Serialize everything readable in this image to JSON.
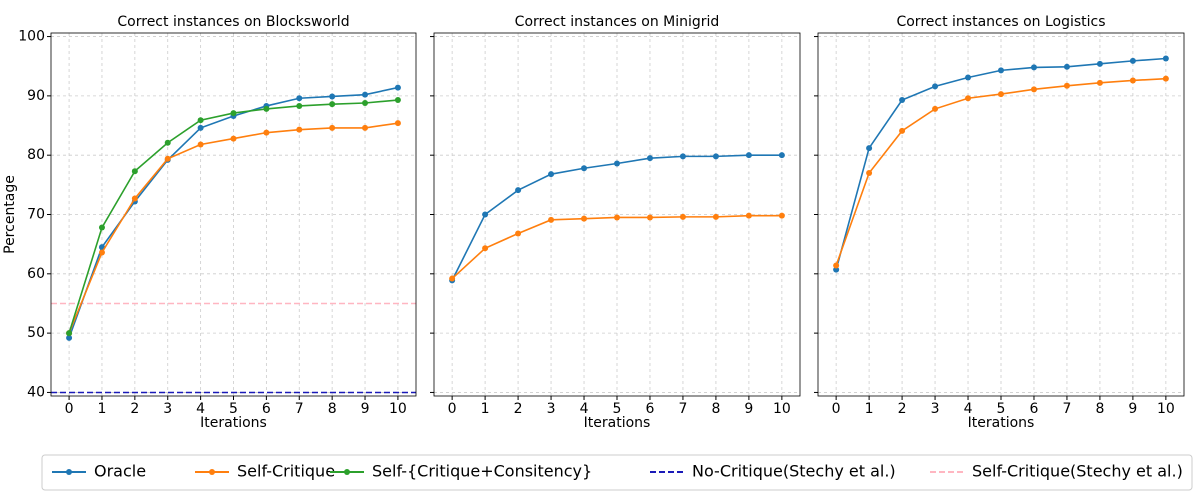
{
  "chart_data": [
    {
      "type": "line",
      "title": "Correct instances on Blocksworld",
      "xlabel": "Iterations",
      "ylabel": "Percentage",
      "x": [
        0,
        1,
        2,
        3,
        4,
        5,
        6,
        7,
        8,
        9,
        10
      ],
      "series": [
        {
          "name": "Oracle",
          "color": "#1f77b4",
          "values": [
            49.2,
            64.5,
            72.2,
            79.2,
            84.6,
            86.6,
            88.3,
            89.6,
            89.9,
            90.2,
            91.4
          ]
        },
        {
          "name": "Self-Critique",
          "color": "#ff7f0e",
          "values": [
            50,
            63.6,
            72.7,
            79.4,
            81.8,
            82.8,
            83.8,
            84.3,
            84.6,
            84.6,
            85.4
          ]
        },
        {
          "name": "Self-{Critique+Consitency}",
          "color": "#2ca02c",
          "values": [
            50,
            67.8,
            77.3,
            82.1,
            85.9,
            87.1,
            87.8,
            88.3,
            88.6,
            88.8,
            89.3
          ]
        }
      ],
      "hlines": [
        {
          "name": "No-Critique(Stechy et al.)",
          "color": "#1a1ab8",
          "value": 40
        },
        {
          "name": "Self-Critique(Stechy et al.)",
          "color": "#ffb6c1",
          "value": 55
        }
      ],
      "xlim": [
        -0.55,
        10.55
      ],
      "xticks": [
        0,
        1,
        2,
        3,
        4,
        5,
        6,
        7,
        8,
        9,
        10
      ],
      "ylim": [
        39.4,
        100.6
      ],
      "yticks": [
        40,
        50,
        60,
        70,
        80,
        90,
        100
      ],
      "grid": true
    },
    {
      "type": "line",
      "title": "Correct instances on Minigrid",
      "xlabel": "Iterations",
      "x": [
        0,
        1,
        2,
        3,
        4,
        5,
        6,
        7,
        8,
        9,
        10
      ],
      "series": [
        {
          "name": "Oracle",
          "color": "#1f77b4",
          "values": [
            58.9,
            70.0,
            74.1,
            76.8,
            77.8,
            78.6,
            79.5,
            79.8,
            79.8,
            80.0,
            80.0
          ]
        },
        {
          "name": "Self-Critique",
          "color": "#ff7f0e",
          "values": [
            59.2,
            64.3,
            66.8,
            69.1,
            69.3,
            69.5,
            69.5,
            69.6,
            69.6,
            69.8,
            69.8
          ]
        }
      ],
      "xlim": [
        -0.55,
        10.55
      ],
      "xticks": [
        0,
        1,
        2,
        3,
        4,
        5,
        6,
        7,
        8,
        9,
        10
      ],
      "ylim": [
        39.4,
        100.6
      ],
      "yticks": [
        40,
        50,
        60,
        70,
        80,
        90,
        100
      ],
      "grid": true
    },
    {
      "type": "line",
      "title": "Correct instances on Logistics",
      "xlabel": "Iterations",
      "x": [
        0,
        1,
        2,
        3,
        4,
        5,
        6,
        7,
        8,
        9,
        10
      ],
      "series": [
        {
          "name": "Oracle",
          "color": "#1f77b4",
          "values": [
            60.7,
            81.2,
            89.3,
            91.6,
            93.1,
            94.3,
            94.8,
            94.9,
            95.4,
            95.9,
            96.3
          ]
        },
        {
          "name": "Self-Critique",
          "color": "#ff7f0e",
          "values": [
            61.4,
            77.0,
            84.1,
            87.8,
            89.6,
            90.3,
            91.1,
            91.7,
            92.2,
            92.6,
            92.9
          ]
        }
      ],
      "xlim": [
        -0.55,
        10.55
      ],
      "xticks": [
        0,
        1,
        2,
        3,
        4,
        5,
        6,
        7,
        8,
        9,
        10
      ],
      "ylim": [
        39.4,
        100.6
      ],
      "yticks": [
        40,
        50,
        60,
        70,
        80,
        90,
        100
      ],
      "grid": true
    }
  ]
}
